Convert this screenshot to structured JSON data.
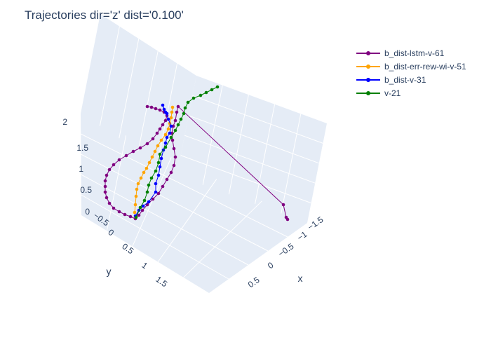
{
  "chart_data": {
    "type": "scatter3d",
    "title": "Trajectories dir='z' dist='0.100'",
    "axes": {
      "x": {
        "label": "x",
        "ticks": [
          "−1.5",
          "−1",
          "−0.5",
          "0",
          "0.5"
        ]
      },
      "y": {
        "label": "y",
        "ticks": [
          "−0.5",
          "0",
          "0.5",
          "1",
          "1.5"
        ]
      },
      "z": {
        "label": "",
        "ticks": [
          "0",
          "0.5",
          "1",
          "1.5",
          "2"
        ]
      }
    },
    "background": "#e5ecf6",
    "legend_position": "top-right",
    "series": [
      {
        "name": "b_dist-lstm-v-61",
        "color": "#800080"
      },
      {
        "name": "b_dist-err-rew-wi-v-51",
        "color": "#ffa500"
      },
      {
        "name": "b_dist-v-31",
        "color": "#0000ff"
      },
      {
        "name": "v-21",
        "color": "#008000"
      }
    ]
  }
}
